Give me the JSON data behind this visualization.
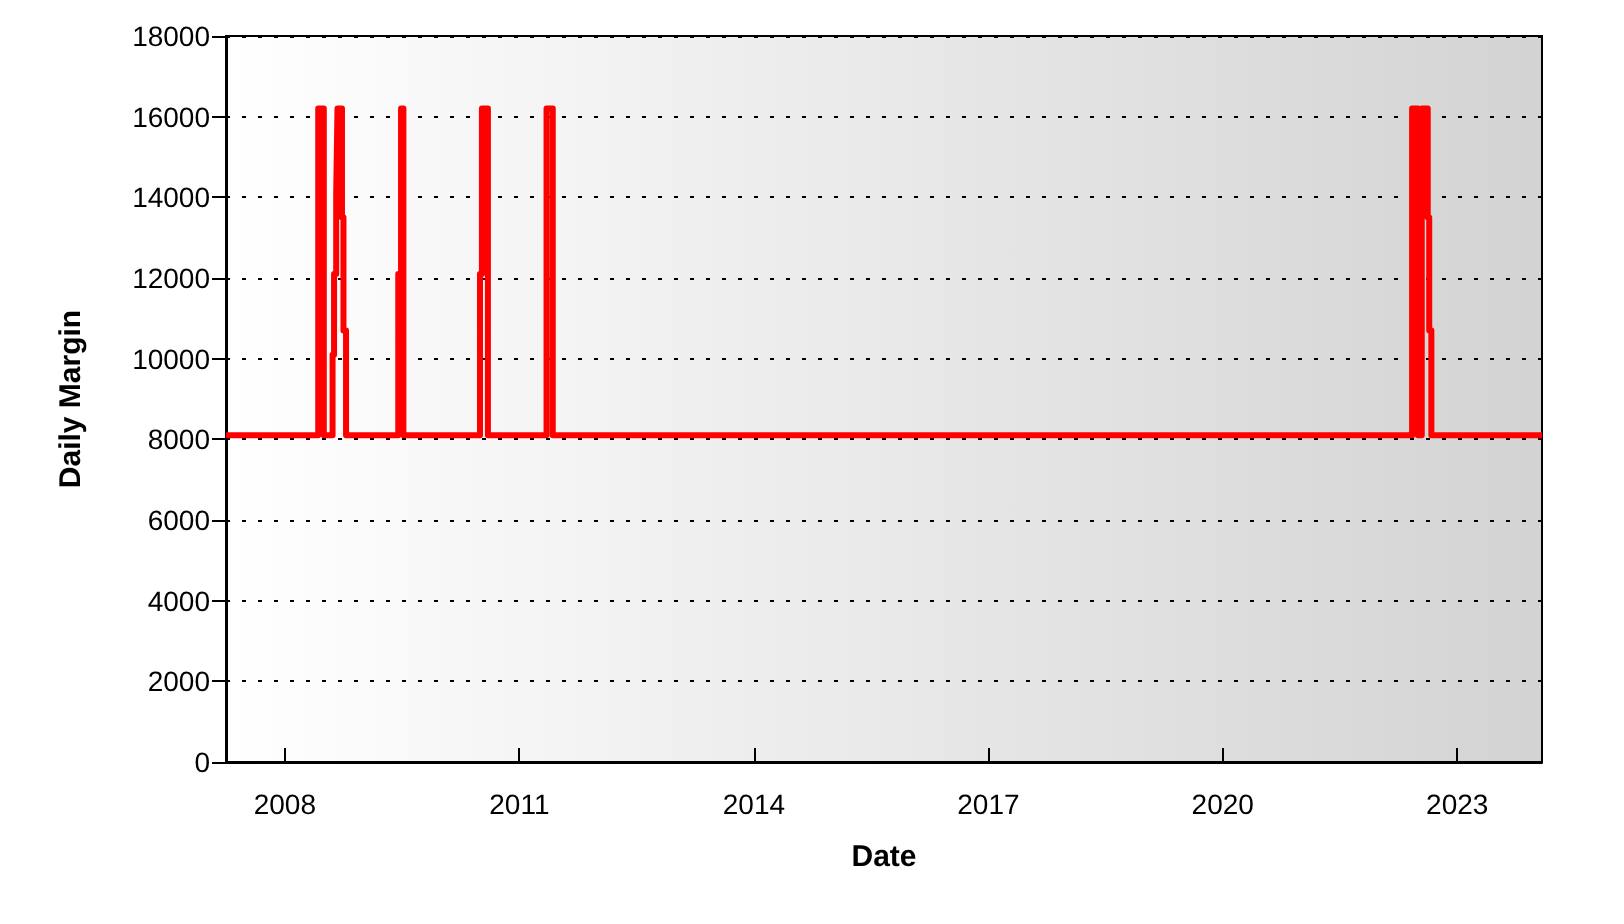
{
  "chart_data": {
    "type": "step",
    "xlabel": "Date",
    "ylabel": "Daily Margin",
    "xlim": [
      "2007-04-01",
      "2024-02-01"
    ],
    "xticks": [
      "2008",
      "2011",
      "2014",
      "2017",
      "2020",
      "2023"
    ],
    "ylim": [
      0,
      18000
    ],
    "yticks": [
      0,
      2000,
      4000,
      6000,
      8000,
      10000,
      12000,
      14000,
      16000,
      18000
    ],
    "grid": "y",
    "marker": "none",
    "line_style": "solid",
    "series": [
      {
        "color": "#ff0000",
        "x": [
          "2007-04-01",
          "2008-06-05",
          "2008-07-01",
          "2008-08-11",
          "2008-08-18",
          "2008-08-28",
          "2008-09-03",
          "2008-09-24",
          "2008-10-01",
          "2008-10-13",
          "2009-06-14",
          "2009-06-27",
          "2009-07-08",
          "2010-07-01",
          "2010-07-10",
          "2010-08-07",
          "2011-05-08",
          "2011-06-06",
          "2022-06-04",
          "2022-07-01",
          "2022-07-19",
          "2022-08-16",
          "2022-08-23",
          "2022-09-02",
          "2024-02-01"
        ],
        "values": [
          8100,
          16200,
          8100,
          10100,
          12100,
          14100,
          16200,
          13500,
          10700,
          8100,
          12100,
          16200,
          8100,
          12100,
          16200,
          8100,
          16200,
          8100,
          16200,
          8100,
          16200,
          13500,
          10700,
          8100,
          8100
        ]
      }
    ]
  }
}
